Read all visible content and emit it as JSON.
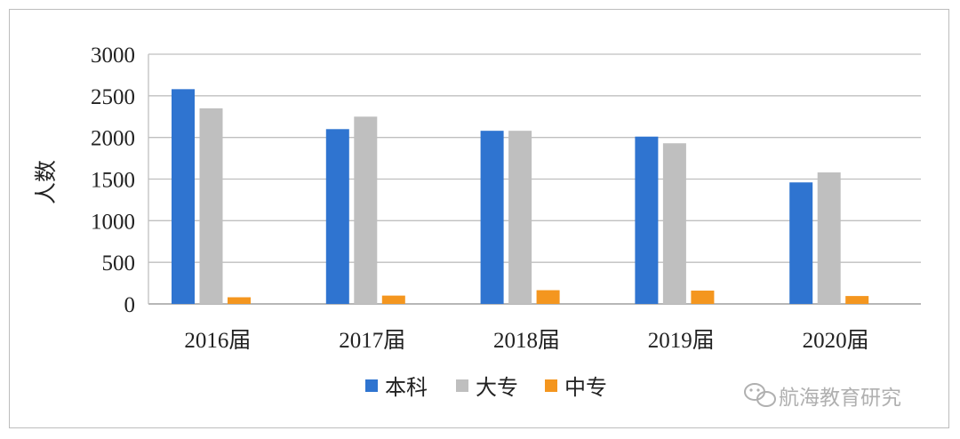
{
  "chart_data": {
    "type": "bar",
    "categories": [
      "2016届",
      "2017届",
      "2018届",
      "2019届",
      "2020届"
    ],
    "series": [
      {
        "name": "本科",
        "color": "#2f74d0",
        "values": [
          2580,
          2100,
          2080,
          2010,
          1460
        ]
      },
      {
        "name": "大专",
        "color": "#bfbfbf",
        "values": [
          2350,
          2250,
          2080,
          1930,
          1580
        ]
      },
      {
        "name": "中专",
        "color": "#f4961f",
        "values": [
          80,
          100,
          165,
          160,
          95
        ]
      }
    ],
    "ylabel": "人数",
    "ylim": [
      0,
      3000
    ],
    "yticks": [
      "0",
      "500",
      "1000",
      "1500",
      "2000",
      "2500",
      "3000"
    ],
    "grid": true,
    "legend_position": "bottom"
  },
  "watermark": {
    "text": "航海教育研究",
    "icon": "wechat-icon"
  }
}
